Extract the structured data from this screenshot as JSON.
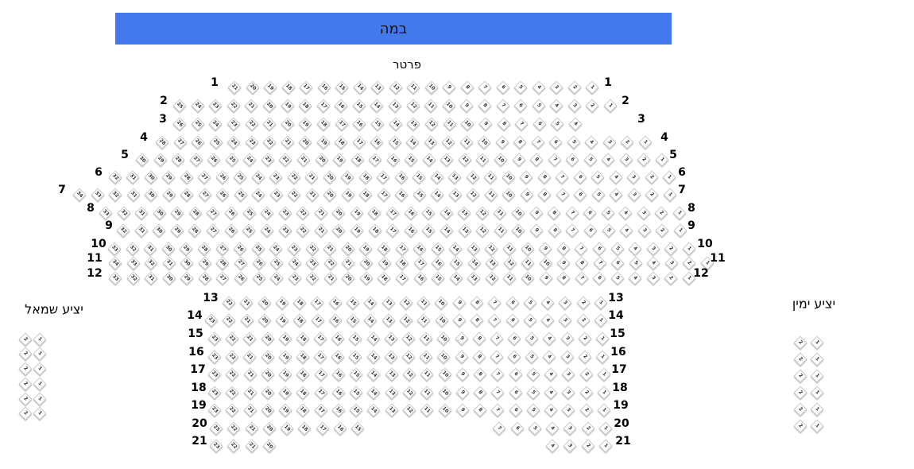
{
  "stage": {
    "label": "במה",
    "color": "#4479ee"
  },
  "sections": {
    "orchestra": {
      "title": "פרטר"
    },
    "left_balcony": {
      "title": "יציע שמאל",
      "rows": [
        [
          "2",
          "1"
        ],
        [
          "2",
          "1"
        ],
        [
          "2",
          "1"
        ],
        [
          "2",
          "1"
        ],
        [
          "2",
          "1"
        ],
        [
          "2",
          "1"
        ]
      ]
    },
    "right_balcony": {
      "title": "יציע ימין",
      "rows": [
        [
          "2",
          "1"
        ],
        [
          "2",
          "1"
        ],
        [
          "2",
          "1"
        ],
        [
          "2",
          "1"
        ],
        [
          "2",
          "1"
        ],
        [
          "2",
          "1"
        ]
      ]
    }
  },
  "rows": [
    {
      "label": "1",
      "seats": [
        21,
        20,
        19,
        18,
        17,
        16,
        15,
        14,
        13,
        12,
        11,
        10,
        9,
        8,
        7,
        6,
        5,
        4,
        3,
        2,
        1
      ]
    },
    {
      "label": "2",
      "seats": [
        25,
        24,
        23,
        22,
        21,
        20,
        19,
        18,
        17,
        16,
        15,
        14,
        13,
        12,
        11,
        10,
        9,
        8,
        7,
        6,
        5,
        4,
        3,
        2,
        1
      ]
    },
    {
      "label": "3",
      "seats": [
        26,
        25,
        24,
        23,
        22,
        21,
        20,
        19,
        18,
        17,
        16,
        15,
        14,
        13,
        12,
        11,
        10,
        9,
        8,
        7,
        6,
        5,
        4
      ]
    },
    {
      "label": "4",
      "seats": [
        28,
        27,
        26,
        25,
        24,
        23,
        22,
        21,
        20,
        19,
        18,
        17,
        16,
        15,
        14,
        13,
        12,
        11,
        10,
        9,
        8,
        7,
        6,
        5,
        4,
        3,
        2,
        1
      ]
    },
    {
      "label": "5",
      "seats": [
        30,
        29,
        28,
        27,
        26,
        25,
        24,
        23,
        22,
        21,
        20,
        19,
        18,
        17,
        16,
        15,
        14,
        13,
        12,
        11,
        10,
        9,
        8,
        7,
        6,
        5,
        4,
        3,
        2,
        1
      ]
    },
    {
      "label": "6",
      "seats": [
        32,
        31,
        30,
        29,
        28,
        27,
        26,
        25,
        24,
        23,
        22,
        21,
        20,
        19,
        18,
        17,
        16,
        15,
        14,
        13,
        12,
        11,
        10,
        9,
        8,
        7,
        6,
        5,
        4,
        3,
        2,
        1
      ]
    },
    {
      "label": "7",
      "seats": [
        34,
        33,
        32,
        31,
        30,
        29,
        28,
        27,
        26,
        25,
        24,
        23,
        22,
        21,
        20,
        19,
        18,
        17,
        16,
        15,
        14,
        13,
        12,
        11,
        10,
        9,
        8,
        7,
        6,
        5,
        4,
        3,
        2,
        1
      ]
    },
    {
      "label": "8",
      "seats": [
        33,
        32,
        31,
        30,
        29,
        28,
        27,
        26,
        25,
        24,
        23,
        22,
        21,
        20,
        19,
        18,
        17,
        16,
        15,
        14,
        13,
        12,
        11,
        10,
        9,
        8,
        7,
        6,
        5,
        4,
        3,
        2,
        1
      ]
    },
    {
      "label": "9",
      "seats": [
        32,
        31,
        30,
        29,
        28,
        27,
        26,
        25,
        24,
        23,
        22,
        21,
        20,
        19,
        18,
        17,
        16,
        15,
        14,
        13,
        12,
        11,
        10,
        9,
        8,
        7,
        6,
        5,
        4,
        3,
        2,
        1
      ]
    },
    {
      "label": "10",
      "seats": [
        33,
        32,
        31,
        30,
        29,
        28,
        27,
        26,
        25,
        24,
        23,
        22,
        21,
        20,
        19,
        18,
        17,
        16,
        15,
        14,
        13,
        12,
        11,
        10,
        9,
        8,
        7,
        6,
        5,
        4,
        3,
        2,
        1
      ]
    },
    {
      "label": "11",
      "seats": [
        34,
        33,
        32,
        31,
        30,
        29,
        28,
        27,
        26,
        25,
        24,
        23,
        22,
        21,
        20,
        19,
        18,
        17,
        16,
        15,
        14,
        13,
        12,
        11,
        10,
        9,
        8,
        7,
        6,
        5,
        4,
        3,
        2,
        1
      ]
    },
    {
      "label": "12",
      "seats": [
        33,
        32,
        31,
        30,
        29,
        28,
        27,
        26,
        25,
        24,
        23,
        22,
        21,
        20,
        19,
        18,
        17,
        16,
        15,
        14,
        13,
        12,
        11,
        10,
        9,
        8,
        7,
        6,
        5,
        4,
        3,
        2,
        1
      ]
    },
    {
      "label": "13",
      "seats": [
        22,
        21,
        20,
        19,
        18,
        17,
        16,
        15,
        14,
        13,
        12,
        11,
        10,
        9,
        8,
        7,
        6,
        5,
        4,
        3,
        2,
        1
      ]
    },
    {
      "label": "14",
      "seats": [
        23,
        22,
        21,
        20,
        19,
        18,
        17,
        16,
        15,
        14,
        13,
        12,
        11,
        10,
        9,
        8,
        7,
        6,
        5,
        4,
        3,
        2,
        1
      ]
    },
    {
      "label": "15",
      "seats": [
        23,
        22,
        21,
        20,
        19,
        18,
        17,
        16,
        15,
        14,
        13,
        12,
        11,
        10,
        9,
        8,
        7,
        6,
        5,
        4,
        3,
        2,
        1
      ]
    },
    {
      "label": "16",
      "seats": [
        23,
        22,
        21,
        20,
        19,
        18,
        17,
        16,
        15,
        14,
        13,
        12,
        11,
        10,
        9,
        8,
        7,
        6,
        5,
        4,
        3,
        2,
        1
      ]
    },
    {
      "label": "17",
      "seats": [
        23,
        22,
        21,
        20,
        19,
        18,
        17,
        16,
        15,
        14,
        13,
        12,
        11,
        10,
        9,
        8,
        7,
        6,
        5,
        4,
        3,
        2,
        1
      ]
    },
    {
      "label": "18",
      "seats": [
        23,
        22,
        21,
        20,
        19,
        18,
        17,
        16,
        15,
        14,
        13,
        12,
        11,
        10,
        9,
        8,
        7,
        6,
        5,
        4,
        3,
        2,
        1
      ]
    },
    {
      "label": "19",
      "seats": [
        23,
        22,
        21,
        20,
        19,
        18,
        17,
        16,
        15,
        14,
        13,
        12,
        11,
        10,
        9,
        8,
        7,
        6,
        5,
        4,
        3,
        2,
        1
      ]
    },
    {
      "label": "20",
      "seats": [
        23,
        22,
        21,
        20,
        19,
        18,
        17,
        16,
        15,
        7,
        6,
        5,
        4,
        3,
        2,
        1
      ]
    },
    {
      "label": "21",
      "seats": [
        23,
        22,
        21,
        20,
        4,
        3,
        2,
        1
      ]
    }
  ]
}
